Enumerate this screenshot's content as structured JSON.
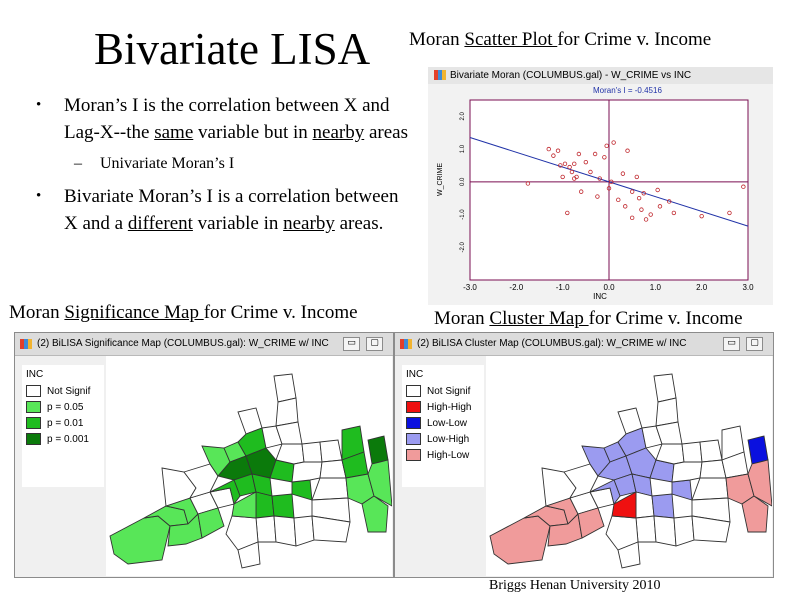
{
  "slide": {
    "title": "Bivariate LISA",
    "bullet1": {
      "text": "Moran’s I is the correlation between X and Lag-X--the ",
      "u1": "same",
      "mid": " variable  but in ",
      "u2": "nearby",
      "end": " areas"
    },
    "sub1": "Univariate Moran’s I",
    "bullet2": {
      "text": "Bivariate Moran’s I is a correlation between X and a ",
      "u1": "different",
      "mid": " variable in ",
      "u2": "nearby",
      "end": " areas."
    },
    "bullet_glyph": "•",
    "dash_glyph": "–",
    "footer": "Briggs  Henan University 2010"
  },
  "captions": {
    "scatter": {
      "pre": "Moran ",
      "link": "Scatter Plot ",
      "post": "for Crime v. Income"
    },
    "significance": {
      "pre": "Moran ",
      "link": "Significance Map ",
      "post": "for Crime v. Income"
    },
    "cluster": {
      "pre": "Moran ",
      "link": "Cluster Map ",
      "post": "for Crime v. Income"
    }
  },
  "scatter_window": {
    "title": "Bivariate Moran (COLUMBUS.gal) - W_CRIME vs INC",
    "stat": "Moran's I = -0.4516",
    "ylabel": "W_CRIME",
    "xlabel": "INC",
    "xticks": [
      "-3.0",
      "-2.0",
      "-1.0",
      "0.0",
      "1.0",
      "2.0",
      "3.0"
    ],
    "yticks": [
      "2.0",
      "1.0",
      "0.0",
      "-1.0",
      "-2.0"
    ],
    "colors": {
      "points": "#c0282e",
      "line": "#2133a8",
      "axes": "#7a0e52"
    }
  },
  "chart_data": {
    "type": "scatter",
    "title": "Bivariate Moran (COLUMBUS.gal) - W_CRIME vs INC",
    "subtitle": "Moran's I = -0.4516",
    "xlabel": "INC",
    "ylabel": "W_CRIME",
    "xlim": [
      -3.0,
      3.0
    ],
    "ylim": [
      -3.0,
      2.5
    ],
    "slope": -0.4516,
    "x": [
      -1.75,
      -1.3,
      -1.2,
      -1.1,
      -1.05,
      -1.0,
      -0.95,
      -0.9,
      -0.85,
      -0.8,
      -0.75,
      -0.7,
      -0.65,
      -0.6,
      -0.5,
      -0.4,
      -0.3,
      -0.25,
      -0.2,
      -0.1,
      -0.05,
      0.0,
      0.05,
      0.1,
      0.2,
      0.3,
      0.35,
      0.4,
      0.5,
      0.6,
      0.7,
      0.75,
      0.8,
      0.9,
      1.1,
      1.3,
      1.4,
      2.0,
      2.6,
      2.9,
      -0.75,
      0.5,
      0.65,
      1.05
    ],
    "y": [
      -0.05,
      1.0,
      0.8,
      0.95,
      0.5,
      0.15,
      0.55,
      -0.95,
      0.45,
      0.3,
      0.55,
      0.15,
      0.85,
      -0.3,
      0.6,
      0.3,
      0.85,
      -0.45,
      0.1,
      0.75,
      1.1,
      -0.2,
      0.0,
      1.2,
      -0.55,
      0.25,
      -0.75,
      0.95,
      -0.3,
      0.15,
      -0.85,
      -0.35,
      -1.15,
      -1.0,
      -0.75,
      -0.6,
      -0.95,
      -1.05,
      -0.95,
      -0.15,
      0.1,
      -1.1,
      -0.5,
      -0.25
    ]
  },
  "significance_window": {
    "title": "(2) BiLISA Significance Map (COLUMBUS.gal): W_CRIME w/ INC",
    "legend_title": "INC",
    "legend": [
      {
        "label": "Not Signif",
        "color": "#ffffff"
      },
      {
        "label": "p = 0.05",
        "color": "#58e658"
      },
      {
        "label": "p = 0.01",
        "color": "#1fbc1f"
      },
      {
        "label": "p = 0.001",
        "color": "#0b7a0b"
      }
    ],
    "btn_min": "▭",
    "btn_max": "▢",
    "btn_close": "✕"
  },
  "cluster_window": {
    "title": "(2) BiLISA Cluster Map (COLUMBUS.gal): W_CRIME w/ INC",
    "legend_title": "INC",
    "legend": [
      {
        "label": "Not Signif",
        "color": "#ffffff"
      },
      {
        "label": "High-High",
        "color": "#ef1010"
      },
      {
        "label": "Low-Low",
        "color": "#0a10df"
      },
      {
        "label": "Low-High",
        "color": "#9b9bf0"
      },
      {
        "label": "High-Low",
        "color": "#f09b9b"
      }
    ],
    "btn_min": "▭",
    "btn_max": "▢",
    "btn_close": "✕"
  },
  "map_colors": {
    "significance": [
      "#ffffff",
      "#58e658",
      "#1fbc1f",
      "#0b7a0b"
    ],
    "cluster": [
      "#ffffff",
      "#ef1010",
      "#0a10df",
      "#9b9bf0",
      "#f09b9b"
    ]
  }
}
